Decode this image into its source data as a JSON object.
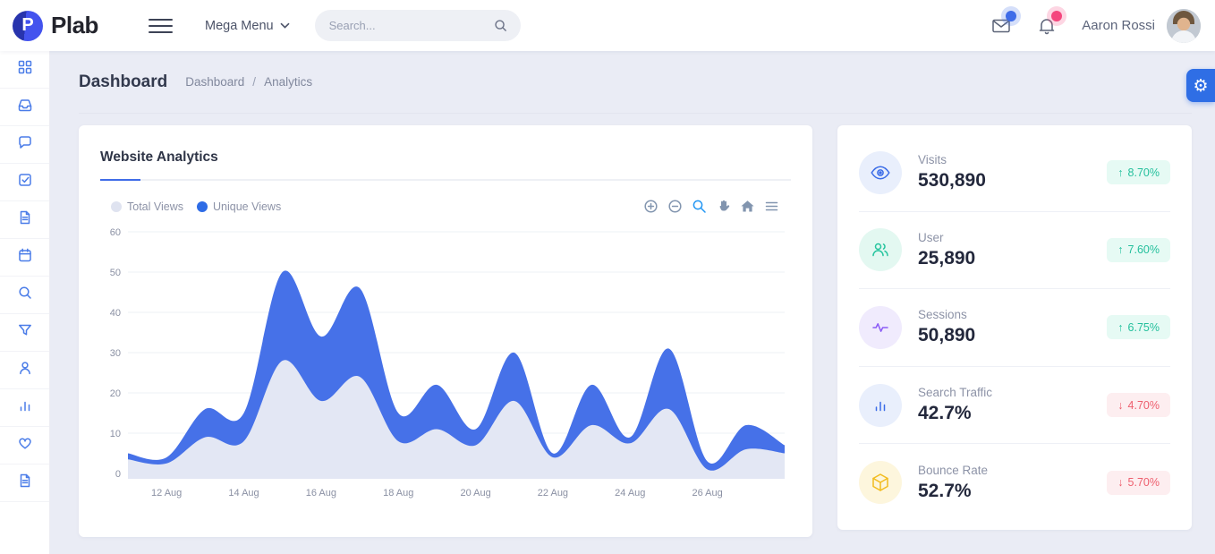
{
  "brand": {
    "name": "Plab",
    "logo_letter": "P"
  },
  "header": {
    "menu_label": "Mega Menu",
    "search_placeholder": "Search...",
    "user_name": "Aaron Rossi"
  },
  "breadcrumb": {
    "page_title": "Dashboard",
    "items": [
      "Dashboard",
      "Analytics"
    ],
    "separator": "/"
  },
  "sidebar": {
    "items": [
      {
        "name": "dashboard",
        "icon": "grid-icon"
      },
      {
        "name": "inbox",
        "icon": "inbox-icon"
      },
      {
        "name": "chat",
        "icon": "chat-icon"
      },
      {
        "name": "tasks",
        "icon": "check-square-icon"
      },
      {
        "name": "notes",
        "icon": "file-icon"
      },
      {
        "name": "calendar",
        "icon": "calendar-icon"
      },
      {
        "name": "search",
        "icon": "search-icon"
      },
      {
        "name": "filter",
        "icon": "filter-icon"
      },
      {
        "name": "contacts",
        "icon": "user-icon"
      },
      {
        "name": "charts",
        "icon": "bar-chart-icon"
      },
      {
        "name": "favorites",
        "icon": "heart-icon"
      },
      {
        "name": "pages",
        "icon": "file-icon"
      }
    ]
  },
  "settings_button": {
    "icon": "gear-icon"
  },
  "chart_card": {
    "title": "Website Analytics",
    "legend": [
      {
        "label": "Total Views",
        "color": "#dfe3f0"
      },
      {
        "label": "Unique Views",
        "color": "#2e6ce6"
      }
    ],
    "modebar": [
      {
        "icon": "zoom-in-icon",
        "active": false
      },
      {
        "icon": "zoom-out-icon",
        "active": false
      },
      {
        "icon": "box-zoom-icon",
        "active": true
      },
      {
        "icon": "pan-icon",
        "active": false
      },
      {
        "icon": "home-icon",
        "active": false
      },
      {
        "icon": "menu-icon",
        "active": false
      }
    ]
  },
  "chart_data": {
    "type": "area",
    "title": "Website Analytics",
    "x": [
      "11 Aug",
      "12 Aug",
      "13 Aug",
      "14 Aug",
      "15 Aug",
      "16 Aug",
      "17 Aug",
      "18 Aug",
      "19 Aug",
      "20 Aug",
      "21 Aug",
      "22 Aug",
      "23 Aug",
      "24 Aug",
      "25 Aug",
      "26 Aug",
      "27 Aug",
      "28 Aug"
    ],
    "x_ticks": [
      "12 Aug",
      "14 Aug",
      "16 Aug",
      "18 Aug",
      "20 Aug",
      "22 Aug",
      "24 Aug",
      "26 Aug"
    ],
    "y_ticks": [
      0,
      10,
      20,
      30,
      40,
      50,
      60
    ],
    "ylim": [
      0,
      60
    ],
    "grid": true,
    "legend_position": "top-left",
    "smoothing": "spline",
    "series": [
      {
        "name": "Total Views",
        "color": "#e3e7f4",
        "values": [
          3.5,
          2.5,
          9,
          8,
          28,
          18,
          24,
          8,
          11,
          7,
          18,
          4,
          12,
          7.5,
          16,
          1,
          6,
          5
        ]
      },
      {
        "name": "Unique Views",
        "color": "#4671e8",
        "values": [
          5,
          4,
          16,
          15,
          50,
          34,
          46,
          15,
          22,
          11,
          30,
          5,
          22,
          9,
          31,
          3,
          12,
          7
        ]
      }
    ]
  },
  "stats": {
    "items": [
      {
        "label": "Visits",
        "value": "530,890",
        "delta": "8.70%",
        "direction": "up",
        "arrow": "↑",
        "icon": "eye-icon",
        "icon_color": "#3b6ce7",
        "icon_bg": "#e9effc"
      },
      {
        "label": "User",
        "value": "25,890",
        "delta": "7.60%",
        "direction": "up",
        "arrow": "↑",
        "icon": "users-icon",
        "icon_color": "#27c59f",
        "icon_bg": "#e3f8f1"
      },
      {
        "label": "Sessions",
        "value": "50,890",
        "delta": "6.75%",
        "direction": "up",
        "arrow": "↑",
        "icon": "activity-icon",
        "icon_color": "#8b5cf6",
        "icon_bg": "#f0ebfd"
      },
      {
        "label": "Search Traffic",
        "value": "42.7%",
        "delta": "4.70%",
        "direction": "down",
        "arrow": "↓",
        "icon": "bar-chart-icon",
        "icon_color": "#3b6ce7",
        "icon_bg": "#e9effc"
      },
      {
        "label": "Bounce Rate",
        "value": "52.7%",
        "delta": "5.70%",
        "direction": "down",
        "arrow": "↓",
        "icon": "cube-icon",
        "icon_color": "#f2bc1f",
        "icon_bg": "#fdf6dd"
      }
    ]
  },
  "colors": {
    "primary": "#3a6fe8",
    "chart_blue": "#4671e8",
    "chart_gray": "#e3e7f4",
    "green": "#25c09d",
    "green_bg": "#e6faf4",
    "red": "#ee5f6e",
    "red_bg": "#fdeef0",
    "mail_dot": "#3f6ce8",
    "bell_dot": "#f4467e",
    "background": "#eaecf5"
  }
}
